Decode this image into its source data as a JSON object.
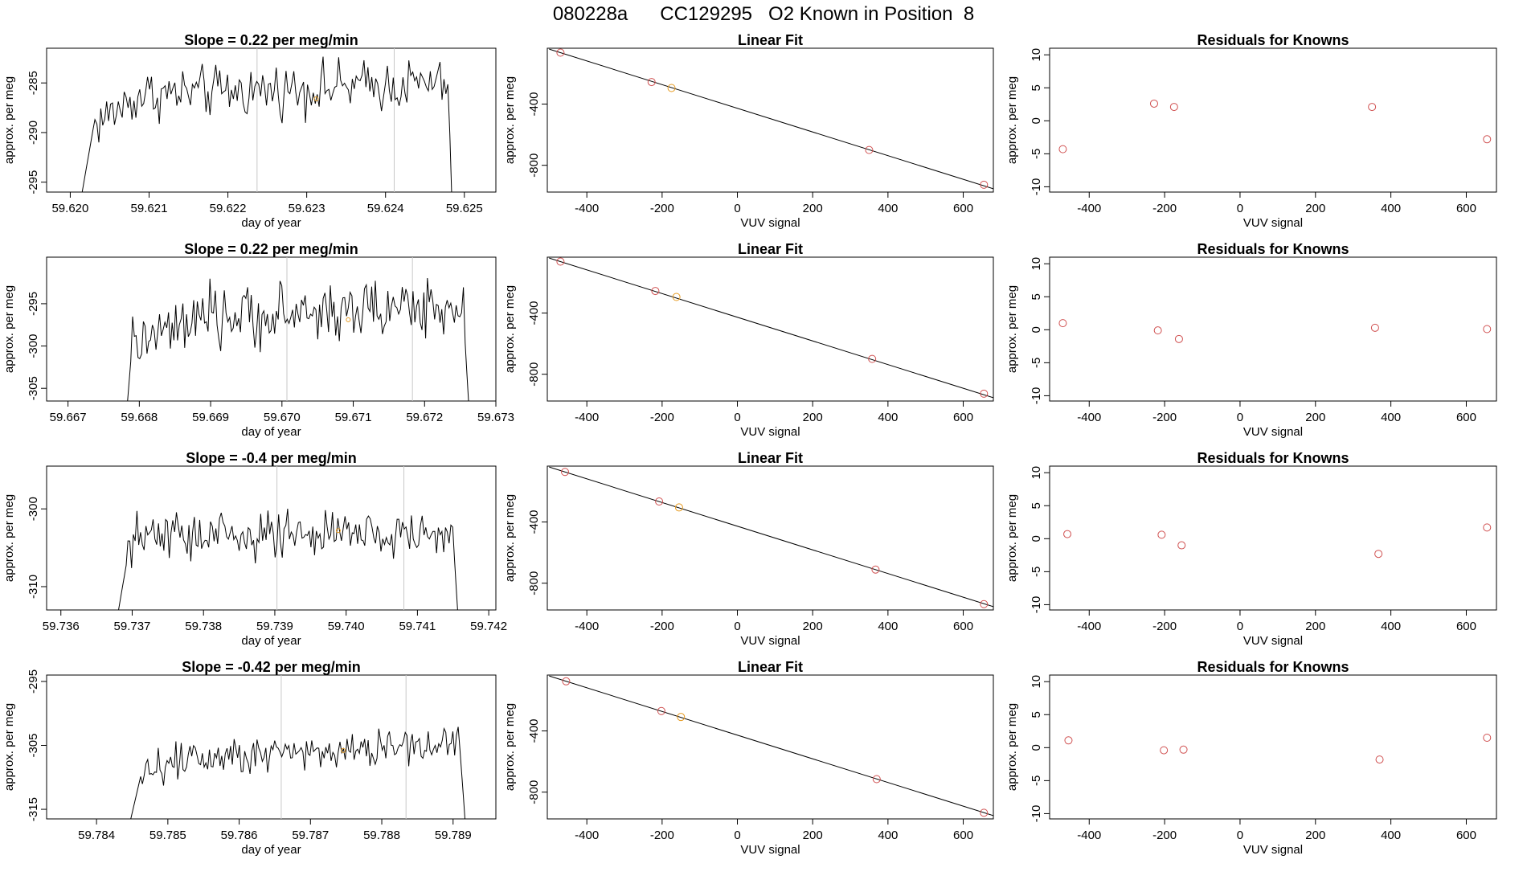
{
  "page": {
    "title": "080228a      CC129295   O2 Known in Position  8"
  },
  "colors": {
    "trace": "#000000",
    "frame": "#000000",
    "marker_line": "#c8c8c8",
    "standard_point": "#d05050",
    "known_point": "#e69a1f"
  },
  "chart_data": [
    {
      "type": "line",
      "row": 0,
      "panel": "time-series",
      "title": "Slope =  0.22  per meg/min",
      "xlabel": "day of year",
      "ylabel": "approx. per meg",
      "xlim": [
        59.6197,
        59.6254
      ],
      "ylim": [
        -296,
        -281.5
      ],
      "xticks": [
        59.62,
        59.621,
        59.622,
        59.623,
        59.624,
        59.625
      ],
      "xtick_labels": [
        "59.620",
        "59.621",
        "59.622",
        "59.623",
        "59.624",
        "59.625"
      ],
      "yticks": [
        -285,
        -290,
        -295
      ],
      "ytick_labels": [
        "-285",
        "-290",
        "-295"
      ],
      "series": [
        {
          "x_start": 59.62014,
          "x_end": 59.62484,
          "plateau_start": 59.6203,
          "plateau_end": 59.6248,
          "rise_end": 59.6209,
          "base": -296.5,
          "level": -286.2,
          "top_level": -285.0,
          "noise": 1.6
        }
      ],
      "vlines": [
        59.62237,
        59.62411
      ],
      "known_point": {
        "x": 59.62312,
        "y": -286.6
      }
    },
    {
      "type": "scatter",
      "row": 0,
      "panel": "linear-fit",
      "title": "Linear Fit",
      "xlabel": "VUV signal",
      "ylabel": "approx. per meg",
      "xlim": [
        -505,
        680
      ],
      "ylim": [
        -975,
        -35
      ],
      "xticks": [
        -400,
        -200,
        0,
        200,
        400,
        600
      ],
      "xtick_labels": [
        "-400",
        "-200",
        "0",
        "200",
        "400",
        "600"
      ],
      "yticks": [
        -400,
        -800
      ],
      "ytick_labels": [
        "-400",
        "-800"
      ],
      "fit_line": {
        "x": [
          -470,
          670
        ],
        "y": [
          -64,
          -946
        ]
      },
      "points": [
        {
          "x": -470,
          "y": -64,
          "kind": "standard"
        },
        {
          "x": -228,
          "y": -256,
          "kind": "standard"
        },
        {
          "x": -175,
          "y": -295,
          "kind": "known"
        },
        {
          "x": 350,
          "y": -700,
          "kind": "standard"
        },
        {
          "x": 655,
          "y": -927,
          "kind": "standard"
        }
      ]
    },
    {
      "type": "scatter",
      "row": 0,
      "panel": "residuals",
      "title": "Residuals for Knowns",
      "xlabel": "VUV signal",
      "ylabel": "approx. per meg",
      "xlim": [
        -505,
        680
      ],
      "ylim": [
        -10.8,
        11
      ],
      "xticks": [
        -400,
        -200,
        0,
        200,
        400,
        600
      ],
      "xtick_labels": [
        "-400",
        "-200",
        "0",
        "200",
        "400",
        "600"
      ],
      "yticks": [
        10,
        5,
        0,
        -5,
        -10
      ],
      "ytick_labels": [
        "10",
        "5",
        "0",
        "-5",
        "-10"
      ],
      "points": [
        {
          "x": -470,
          "y": -4.3
        },
        {
          "x": -228,
          "y": 2.6
        },
        {
          "x": -175,
          "y": 2.1
        },
        {
          "x": 350,
          "y": 2.1
        },
        {
          "x": 655,
          "y": -2.8
        }
      ]
    },
    {
      "type": "line",
      "row": 1,
      "panel": "time-series",
      "title": "Slope =  0.22  per meg/min",
      "xlabel": "day of year",
      "ylabel": "approx. per meg",
      "xlim": [
        59.6667,
        59.673
      ],
      "ylim": [
        -306.5,
        -289.5
      ],
      "xticks": [
        59.667,
        59.668,
        59.669,
        59.67,
        59.671,
        59.672,
        59.673
      ],
      "xtick_labels": [
        "59.667",
        "59.668",
        "59.669",
        "59.670",
        "59.671",
        "59.672",
        "59.673"
      ],
      "yticks": [
        -295,
        -300,
        -305
      ],
      "ytick_labels": [
        "-295",
        "-300",
        "-305"
      ],
      "series": [
        {
          "x_start": 59.66783,
          "x_end": 59.67262,
          "plateau_start": 59.6679,
          "plateau_end": 59.67255,
          "rise_end": 59.669,
          "base": -307,
          "level": -296.8,
          "top_level": -295.0,
          "noise": 2.2
        }
      ],
      "vlines": [
        59.67007,
        59.67183
      ],
      "known_point": {
        "x": 59.67093,
        "y": -296.9
      }
    },
    {
      "type": "scatter",
      "row": 1,
      "panel": "linear-fit",
      "title": "Linear Fit",
      "xlabel": "VUV signal",
      "ylabel": "approx. per meg",
      "xlim": [
        -505,
        680
      ],
      "ylim": [
        -975,
        -35
      ],
      "xticks": [
        -400,
        -200,
        0,
        200,
        400,
        600
      ],
      "xtick_labels": [
        "-400",
        "-200",
        "0",
        "200",
        "400",
        "600"
      ],
      "yticks": [
        -400,
        -800
      ],
      "ytick_labels": [
        "-400",
        "-800"
      ],
      "fit_line": {
        "x": [
          -470,
          670
        ],
        "y": [
          -64,
          -946
        ]
      },
      "points": [
        {
          "x": -470,
          "y": -64,
          "kind": "standard"
        },
        {
          "x": -218,
          "y": -256,
          "kind": "standard"
        },
        {
          "x": -162,
          "y": -295,
          "kind": "known"
        },
        {
          "x": 358,
          "y": -700,
          "kind": "standard"
        },
        {
          "x": 655,
          "y": -927,
          "kind": "standard"
        }
      ]
    },
    {
      "type": "scatter",
      "row": 1,
      "panel": "residuals",
      "title": "Residuals for Knowns",
      "xlabel": "VUV signal",
      "ylabel": "approx. per meg",
      "xlim": [
        -505,
        680
      ],
      "ylim": [
        -10.8,
        11
      ],
      "xticks": [
        -400,
        -200,
        0,
        200,
        400,
        600
      ],
      "xtick_labels": [
        "-400",
        "-200",
        "0",
        "200",
        "400",
        "600"
      ],
      "yticks": [
        10,
        5,
        0,
        -5,
        -10
      ],
      "ytick_labels": [
        "10",
        "5",
        "0",
        "-5",
        "-10"
      ],
      "points": [
        {
          "x": -470,
          "y": 1.0
        },
        {
          "x": -218,
          "y": -0.1
        },
        {
          "x": -162,
          "y": -1.4
        },
        {
          "x": 358,
          "y": 0.3
        },
        {
          "x": 655,
          "y": 0.1
        }
      ]
    },
    {
      "type": "line",
      "row": 2,
      "panel": "time-series",
      "title": "Slope =  -0.4  per meg/min",
      "xlabel": "day of year",
      "ylabel": "approx. per meg",
      "xlim": [
        59.7358,
        59.7421
      ],
      "ylim": [
        -313,
        -294.5
      ],
      "xticks": [
        59.736,
        59.737,
        59.738,
        59.739,
        59.74,
        59.741,
        59.742
      ],
      "xtick_labels": [
        "59.736",
        "59.737",
        "59.738",
        "59.739",
        "59.740",
        "59.741",
        "59.742"
      ],
      "yticks": [
        -300,
        -310
      ],
      "ytick_labels": [
        "-300",
        "-310"
      ],
      "series": [
        {
          "x_start": 59.73679,
          "x_end": 59.74157,
          "plateau_start": 59.73693,
          "plateau_end": 59.7415,
          "rise_end": 59.7371,
          "base": -314,
          "level": -303.5,
          "top_level": -303.2,
          "noise": 2.0
        }
      ],
      "vlines": [
        59.73903,
        59.74081
      ],
      "known_point": {
        "x": 59.73989,
        "y": -302.8
      }
    },
    {
      "type": "scatter",
      "row": 2,
      "panel": "linear-fit",
      "title": "Linear Fit",
      "xlabel": "VUV signal",
      "ylabel": "approx. per meg",
      "xlim": [
        -505,
        680
      ],
      "ylim": [
        -975,
        -35
      ],
      "xticks": [
        -400,
        -200,
        0,
        200,
        400,
        600
      ],
      "xtick_labels": [
        "-400",
        "-200",
        "0",
        "200",
        "400",
        "600"
      ],
      "yticks": [
        -400,
        -800
      ],
      "ytick_labels": [
        "-400",
        "-800"
      ],
      "fit_line": {
        "x": [
          -470,
          670
        ],
        "y": [
          -64,
          -946
        ]
      },
      "points": [
        {
          "x": -458,
          "y": -73,
          "kind": "standard"
        },
        {
          "x": -208,
          "y": -266,
          "kind": "standard"
        },
        {
          "x": -155,
          "y": -305,
          "kind": "known"
        },
        {
          "x": 367,
          "y": -711,
          "kind": "standard"
        },
        {
          "x": 655,
          "y": -937,
          "kind": "standard"
        }
      ]
    },
    {
      "type": "scatter",
      "row": 2,
      "panel": "residuals",
      "title": "Residuals for Knowns",
      "xlabel": "VUV signal",
      "ylabel": "approx. per meg",
      "xlim": [
        -505,
        680
      ],
      "ylim": [
        -10.8,
        11
      ],
      "xticks": [
        -400,
        -200,
        0,
        200,
        400,
        600
      ],
      "xtick_labels": [
        "-400",
        "-200",
        "0",
        "200",
        "400",
        "600"
      ],
      "yticks": [
        10,
        5,
        0,
        -5,
        -10
      ],
      "ytick_labels": [
        "10",
        "5",
        "0",
        "-5",
        "-10"
      ],
      "points": [
        {
          "x": -458,
          "y": 0.7
        },
        {
          "x": -208,
          "y": 0.6
        },
        {
          "x": -155,
          "y": -1.0
        },
        {
          "x": 367,
          "y": -2.3
        },
        {
          "x": 655,
          "y": 1.7
        }
      ]
    },
    {
      "type": "line",
      "row": 3,
      "panel": "time-series",
      "title": "Slope =  -0.42  per meg/min",
      "xlabel": "day of year",
      "ylabel": "approx. per meg",
      "xlim": [
        59.7833,
        59.7896
      ],
      "ylim": [
        -316.5,
        -294
      ],
      "xticks": [
        59.784,
        59.785,
        59.786,
        59.787,
        59.788,
        59.789
      ],
      "xtick_labels": [
        "59.784",
        "59.785",
        "59.786",
        "59.787",
        "59.788",
        "59.789"
      ],
      "yticks": [
        -295,
        -305,
        -315
      ],
      "ytick_labels": [
        "-295",
        "-305",
        "-315"
      ],
      "series": [
        {
          "x_start": 59.78447,
          "x_end": 59.78917,
          "plateau_start": 59.78463,
          "plateau_end": 59.7891,
          "rise_end": 59.7855,
          "base": -317,
          "level": -306.3,
          "top_level": -304.8,
          "noise": 2.0
        }
      ],
      "vlines": [
        59.78659,
        59.78834
      ],
      "known_point": {
        "x": 59.78746,
        "y": -305.8
      }
    },
    {
      "type": "scatter",
      "row": 3,
      "panel": "linear-fit",
      "title": "Linear Fit",
      "xlabel": "VUV signal",
      "ylabel": "approx. per meg",
      "xlim": [
        -505,
        680
      ],
      "ylim": [
        -975,
        -35
      ],
      "xticks": [
        -400,
        -200,
        0,
        200,
        400,
        600
      ],
      "xtick_labels": [
        "-400",
        "-200",
        "0",
        "200",
        "400",
        "600"
      ],
      "yticks": [
        -400,
        -800
      ],
      "ytick_labels": [
        "-400",
        "-800"
      ],
      "fit_line": {
        "x": [
          -470,
          670
        ],
        "y": [
          -64,
          -946
        ]
      },
      "points": [
        {
          "x": -455,
          "y": -76,
          "kind": "standard"
        },
        {
          "x": -202,
          "y": -270,
          "kind": "standard"
        },
        {
          "x": -150,
          "y": -309,
          "kind": "known"
        },
        {
          "x": 370,
          "y": -715,
          "kind": "standard"
        },
        {
          "x": 655,
          "y": -935,
          "kind": "standard"
        }
      ]
    },
    {
      "type": "scatter",
      "row": 3,
      "panel": "residuals",
      "title": "Residuals for Knowns",
      "xlabel": "VUV signal",
      "ylabel": "approx. per meg",
      "xlim": [
        -505,
        680
      ],
      "ylim": [
        -10.8,
        11
      ],
      "xticks": [
        -400,
        -200,
        0,
        200,
        400,
        600
      ],
      "xtick_labels": [
        "-400",
        "-200",
        "0",
        "200",
        "400",
        "600"
      ],
      "yticks": [
        10,
        5,
        0,
        -5,
        -10
      ],
      "ytick_labels": [
        "10",
        "5",
        "0",
        "-5",
        "-10"
      ],
      "points": [
        {
          "x": -455,
          "y": 1.1
        },
        {
          "x": -202,
          "y": -0.4
        },
        {
          "x": -150,
          "y": -0.3
        },
        {
          "x": 370,
          "y": -1.8
        },
        {
          "x": 655,
          "y": 1.5
        }
      ]
    }
  ]
}
